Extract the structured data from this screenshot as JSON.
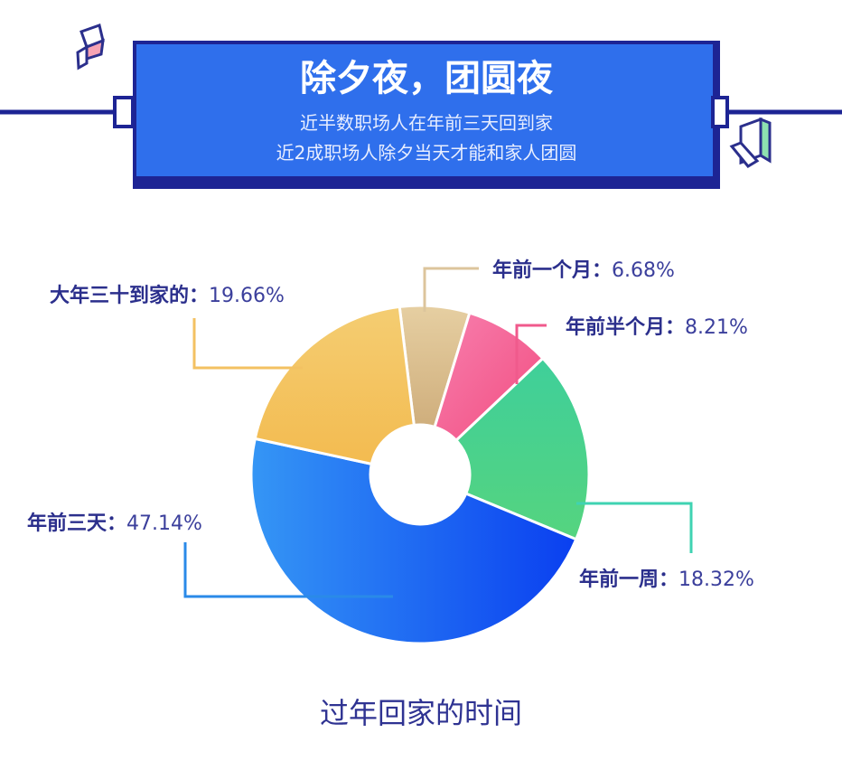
{
  "header": {
    "title": "除夕夜，团圆夜",
    "subtitle_line1": "近半数职场人在年前三天回到家",
    "subtitle_line2": "近2成职场人除夕当天才能和家人团圆"
  },
  "chart_data": {
    "type": "pie",
    "donut": true,
    "title": "过年回家的时间",
    "slices": [
      {
        "label": "年前一个月：",
        "value": 6.68,
        "value_text": "6.68%",
        "color": "#dcc08f"
      },
      {
        "label": "年前半个月：",
        "value": 8.21,
        "value_text": "8.21%",
        "color": "#f5608f"
      },
      {
        "label": "年前一周：",
        "value": 18.32,
        "value_text": "18.32%",
        "color": "#45d08a"
      },
      {
        "label": "年前三天：",
        "value": 47.14,
        "value_text": "47.14%",
        "color": "#2a6cf0"
      },
      {
        "label": "大年三十到家的：",
        "value": 19.66,
        "value_text": "19.66%",
        "color": "#f4c45e"
      }
    ]
  },
  "colors": {
    "navy": "#1d2494",
    "box_blue": "#2f6fec",
    "label": "#2b2f8c"
  }
}
